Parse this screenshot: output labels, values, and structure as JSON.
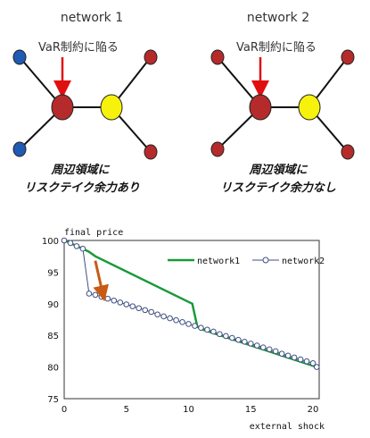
{
  "networks": [
    {
      "title": "network 1",
      "arrow_label": "VaR制約に陥る",
      "caption_line1": "周辺領域に",
      "caption_line2": "リスクテイク余力あり",
      "colors": {
        "center": "#b52b2b",
        "hub": "#f7f20c",
        "nodes": [
          "#1f5bb5",
          "#1f5bb5",
          "#b52b2b",
          "#b52b2b"
        ]
      }
    },
    {
      "title": "network 2",
      "arrow_label": "VaR制約に陥る",
      "caption_line1": "周辺領域に",
      "caption_line2": "リスクテイク余力なし",
      "colors": {
        "center": "#b52b2b",
        "hub": "#f7f20c",
        "nodes": [
          "#b52b2b",
          "#b52b2b",
          "#b52b2b",
          "#b52b2b"
        ]
      }
    }
  ],
  "chart_data": {
    "type": "line",
    "ylabel": "final price",
    "xlabel": "external shock",
    "xlim": [
      0,
      20.5
    ],
    "ylim": [
      75,
      100
    ],
    "xticks": [
      "0",
      "5",
      "10",
      "15",
      "20"
    ],
    "yticks": [
      "75",
      "80",
      "85",
      "90",
      "95",
      "100"
    ],
    "legend_position": "top-right",
    "series": [
      {
        "name": "network1",
        "color": "#1a9a3a",
        "marker": "none",
        "points": [
          [
            0,
            100
          ],
          [
            0.5,
            99.6
          ],
          [
            1,
            99.1
          ],
          [
            1.5,
            98.7
          ],
          [
            2,
            98.2
          ],
          [
            2.5,
            97.5
          ],
          [
            10.3,
            90.0
          ],
          [
            10.7,
            86.4
          ],
          [
            11,
            86.0
          ],
          [
            20.3,
            80.0
          ]
        ]
      },
      {
        "name": "network2",
        "color": "#3f4f80",
        "marker": "circle",
        "points": [
          [
            0,
            100
          ],
          [
            0.5,
            99.6
          ],
          [
            1,
            99.1
          ],
          [
            1.5,
            98.7
          ],
          [
            2,
            91.6
          ],
          [
            2.5,
            91.4
          ],
          [
            3,
            91.1
          ],
          [
            3.5,
            90.8
          ],
          [
            4,
            90.5
          ],
          [
            4.5,
            90.2
          ],
          [
            5,
            89.9
          ],
          [
            5.5,
            89.6
          ],
          [
            6,
            89.3
          ],
          [
            6.5,
            89.0
          ],
          [
            7,
            88.7
          ],
          [
            7.5,
            88.3
          ],
          [
            8,
            88.0
          ],
          [
            8.5,
            87.7
          ],
          [
            9,
            87.4
          ],
          [
            9.5,
            87.1
          ],
          [
            10,
            86.8
          ],
          [
            10.5,
            86.5
          ],
          [
            11,
            86.2
          ],
          [
            11.5,
            85.9
          ],
          [
            12,
            85.6
          ],
          [
            12.5,
            85.2
          ],
          [
            13,
            84.9
          ],
          [
            13.5,
            84.6
          ],
          [
            14,
            84.3
          ],
          [
            14.5,
            84.0
          ],
          [
            15,
            83.7
          ],
          [
            15.5,
            83.4
          ],
          [
            16,
            83.1
          ],
          [
            16.5,
            82.8
          ],
          [
            17,
            82.5
          ],
          [
            17.5,
            82.1
          ],
          [
            18,
            81.8
          ],
          [
            18.5,
            81.5
          ],
          [
            19,
            81.2
          ],
          [
            19.5,
            80.9
          ],
          [
            20,
            80.6
          ],
          [
            20.3,
            80.0
          ]
        ]
      }
    ],
    "annotation_arrow": {
      "color": "#c85a14",
      "from": [
        2.5,
        96.8
      ],
      "to": [
        3.1,
        91.6
      ]
    }
  }
}
